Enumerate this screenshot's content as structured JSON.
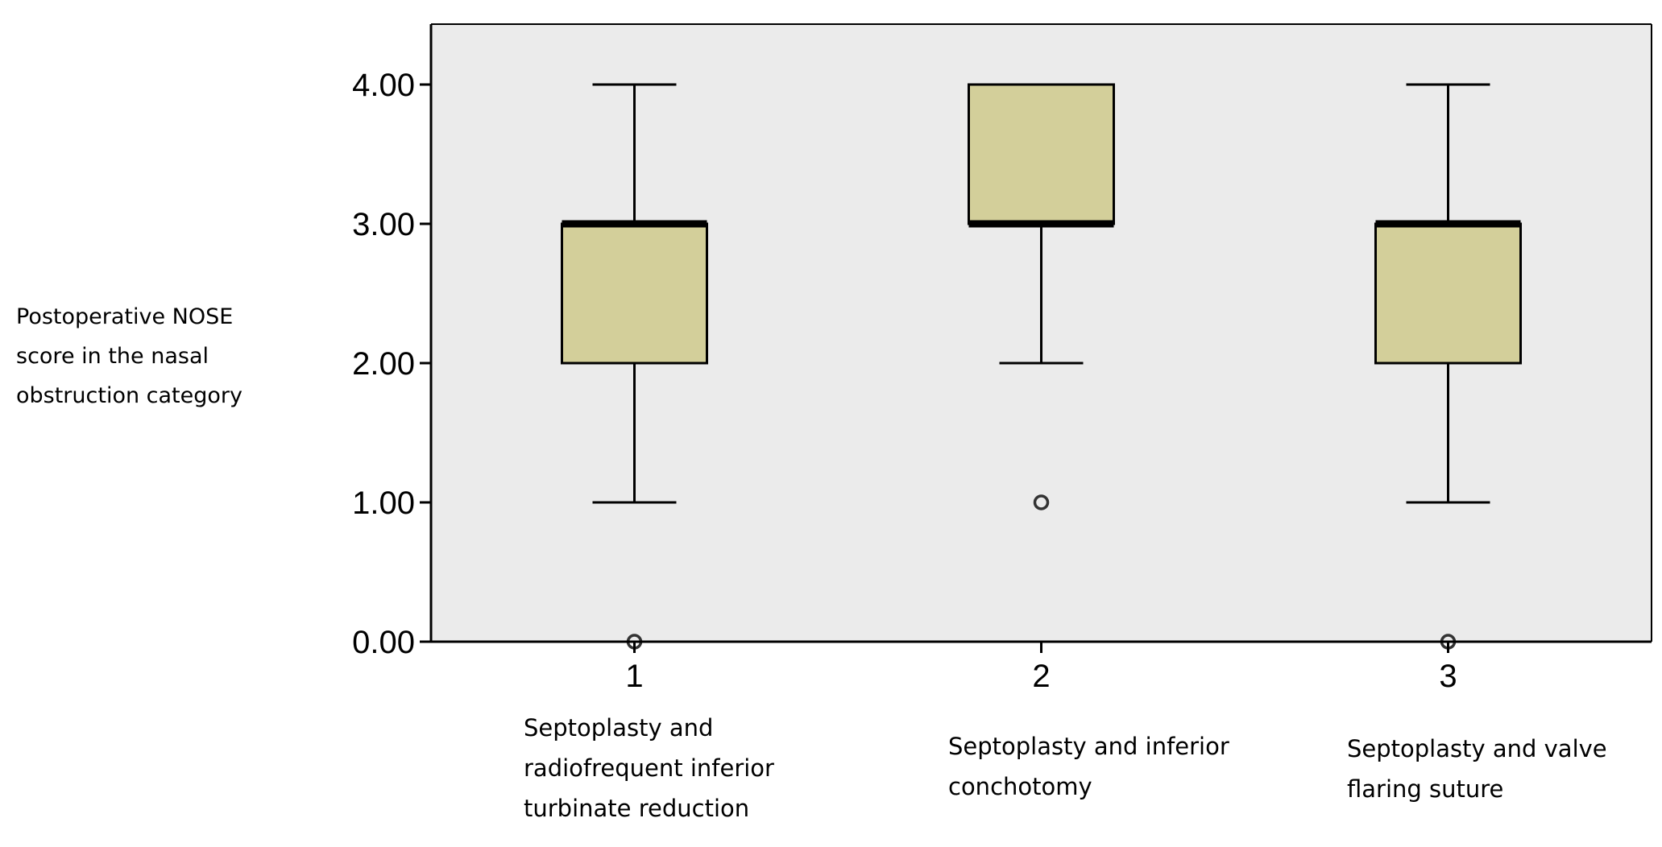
{
  "chart_data": {
    "type": "box",
    "title": "",
    "ylabel_lines": [
      "Postoperative NOSE",
      "score in the nasal",
      "obstruction category"
    ],
    "xlabel": "",
    "ylim": [
      0,
      4.45
    ],
    "y_ticks": [
      "0.00",
      "1.00",
      "2.00",
      "3.00",
      "4.00"
    ],
    "grid": false,
    "background": "#ebebeb",
    "box_color": "#d3cf9a",
    "categories": [
      {
        "tick": "1",
        "label_lines": [
          "Septoplasty and",
          "radiofrequent inferior",
          "turbinate reduction"
        ]
      },
      {
        "tick": "2",
        "label_lines": [
          "Septoplasty and inferior",
          "conchotomy"
        ]
      },
      {
        "tick": "3",
        "label_lines": [
          "Septoplasty and valve",
          "flaring suture"
        ]
      }
    ],
    "series": [
      {
        "whisker_low": 1,
        "q1": 2,
        "median": 3,
        "q3": 3,
        "whisker_high": 4,
        "outliers": [
          0
        ]
      },
      {
        "whisker_low": 2,
        "q1": 3,
        "median": 3,
        "q3": 4,
        "whisker_high": 4,
        "outliers": [
          1
        ]
      },
      {
        "whisker_low": 1,
        "q1": 2,
        "median": 3,
        "q3": 3,
        "whisker_high": 4,
        "outliers": [
          0
        ]
      }
    ]
  }
}
